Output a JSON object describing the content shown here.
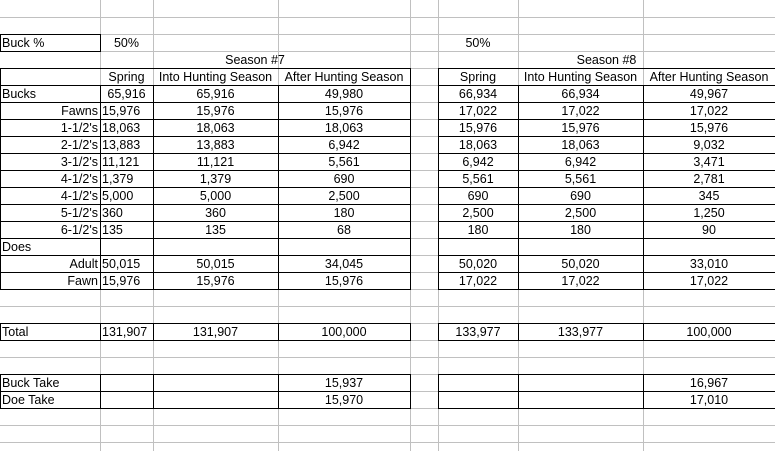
{
  "buck_pct_label": "Buck %",
  "buck_pct_7": "50%",
  "buck_pct_8": "50%",
  "season7": {
    "title": "Season #7",
    "headers": [
      "Spring",
      "Into Hunting Season",
      "After Hunting Season"
    ],
    "bucks": [
      "65,916",
      "65,916",
      "49,980"
    ],
    "ages": [
      [
        "15,976",
        "15,976",
        "15,976"
      ],
      [
        "18,063",
        "18,063",
        "18,063"
      ],
      [
        "13,883",
        "13,883",
        "6,942"
      ],
      [
        "11,121",
        "11,121",
        "5,561"
      ],
      [
        "1,379",
        "1,379",
        "690"
      ],
      [
        "5,000",
        "5,000",
        "2,500"
      ],
      [
        "360",
        "360",
        "180"
      ],
      [
        "135",
        "135",
        "68"
      ]
    ],
    "adult": [
      "50,015",
      "50,015",
      "34,045"
    ],
    "fawn": [
      "15,976",
      "15,976",
      "15,976"
    ],
    "total": [
      "131,907",
      "131,907",
      "100,000"
    ],
    "buck_take": "15,937",
    "doe_take": "15,970"
  },
  "season8": {
    "title": "Season #8",
    "headers": [
      "Spring",
      "Into Hunting Season",
      "After Hunting Season"
    ],
    "bucks": [
      "66,934",
      "66,934",
      "49,967"
    ],
    "ages": [
      [
        "17,022",
        "17,022",
        "17,022"
      ],
      [
        "15,976",
        "15,976",
        "15,976"
      ],
      [
        "18,063",
        "18,063",
        "9,032"
      ],
      [
        "6,942",
        "6,942",
        "3,471"
      ],
      [
        "5,561",
        "5,561",
        "2,781"
      ],
      [
        "690",
        "690",
        "345"
      ],
      [
        "2,500",
        "2,500",
        "1,250"
      ],
      [
        "180",
        "180",
        "90"
      ]
    ],
    "adult": [
      "50,020",
      "50,020",
      "33,010"
    ],
    "fawn": [
      "17,022",
      "17,022",
      "17,022"
    ],
    "total": [
      "133,977",
      "133,977",
      "100,000"
    ],
    "buck_take": "16,967",
    "doe_take": "17,010"
  },
  "labels": {
    "bucks": "Bucks",
    "ages": [
      "Fawns",
      "1-1/2's",
      "2-1/2's",
      "3-1/2's",
      "4-1/2's",
      "4-1/2's",
      "5-1/2's",
      "6-1/2's"
    ],
    "does": "Does",
    "adult": "Adult",
    "fawn": "Fawn",
    "total": "Total",
    "buck_take": "Buck Take",
    "doe_take": "Doe Take"
  }
}
